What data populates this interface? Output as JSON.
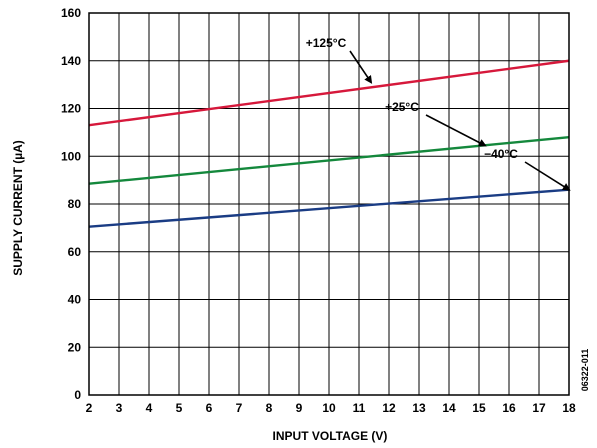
{
  "chart_data": {
    "type": "line",
    "xlabel": "INPUT VOLTAGE (V)",
    "ylabel": "SUPPLY CURRENT (µA)",
    "xlim": [
      2,
      18
    ],
    "ylim": [
      0,
      160
    ],
    "x_ticks": [
      2,
      3,
      4,
      5,
      6,
      7,
      8,
      9,
      10,
      11,
      12,
      13,
      14,
      15,
      16,
      17,
      18
    ],
    "y_ticks": [
      0,
      20,
      40,
      60,
      80,
      100,
      120,
      140,
      160
    ],
    "grid": true,
    "series": [
      {
        "name": "+125°C",
        "color": "#d6183b",
        "x": [
          2,
          18
        ],
        "y": [
          113,
          140
        ]
      },
      {
        "name": "+25°C",
        "color": "#14883c",
        "x": [
          2,
          18
        ],
        "y": [
          88.5,
          108
        ]
      },
      {
        "name": "−40°C",
        "color": "#1a3c84",
        "x": [
          2,
          18
        ],
        "y": [
          70.5,
          86
        ]
      }
    ],
    "annotations": [
      {
        "text": "+125°C",
        "points_to_x": 11.4,
        "points_to_y": 131
      },
      {
        "text": "+25°C",
        "points_to_x": 15.2,
        "points_to_y": 104.5
      },
      {
        "text": "−40°C",
        "points_to_x": 18,
        "points_to_y": 86
      }
    ],
    "figure_id": "06322-011"
  }
}
